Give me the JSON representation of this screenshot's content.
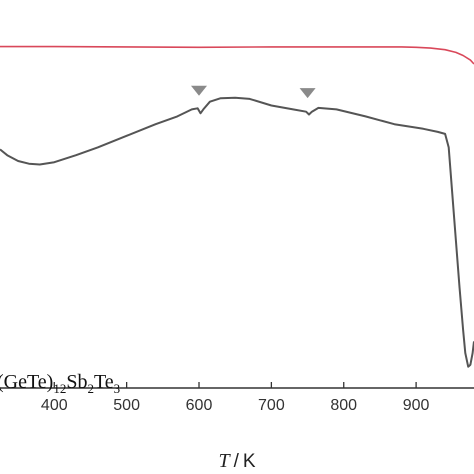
{
  "chart_data": {
    "type": "line",
    "xlabel_symbol": "T",
    "xlabel_unit": "K",
    "x_ticks": [
      400,
      500,
      600,
      700,
      800,
      900
    ],
    "xlim": [
      325,
      980
    ],
    "ylim": [
      0,
      1
    ],
    "grid": false,
    "annotation": {
      "parts": [
        {
          "text": "(GeTe)",
          "sub": false
        },
        {
          "text": "12",
          "sub": true
        },
        {
          "text": "Sb",
          "sub": false
        },
        {
          "text": "2",
          "sub": true
        },
        {
          "text": "Te",
          "sub": false
        },
        {
          "text": "3",
          "sub": true
        }
      ]
    },
    "markers": {
      "shape": "triangle-down",
      "color": "#8a8a8a",
      "x": [
        600,
        750
      ]
    },
    "series": [
      {
        "color": "#d9485a",
        "x": [
          325,
          400,
          500,
          600,
          700,
          800,
          880,
          900,
          920,
          940,
          955,
          965,
          975,
          980
        ],
        "y": [
          0.88,
          0.88,
          0.879,
          0.878,
          0.879,
          0.879,
          0.879,
          0.878,
          0.876,
          0.872,
          0.865,
          0.857,
          0.845,
          0.835
        ]
      },
      {
        "color": "#555555",
        "x": [
          325,
          335,
          350,
          365,
          380,
          400,
          430,
          460,
          500,
          540,
          570,
          590,
          598,
          602,
          606,
          615,
          630,
          650,
          670,
          700,
          730,
          748,
          752,
          756,
          765,
          790,
          830,
          870,
          910,
          930,
          940,
          945,
          950,
          955,
          960,
          965,
          968,
          972,
          975,
          978,
          980
        ],
        "y": [
          0.615,
          0.6,
          0.585,
          0.578,
          0.576,
          0.582,
          0.6,
          0.62,
          0.65,
          0.68,
          0.7,
          0.718,
          0.721,
          0.708,
          0.718,
          0.738,
          0.747,
          0.748,
          0.745,
          0.728,
          0.718,
          0.712,
          0.705,
          0.712,
          0.722,
          0.718,
          0.7,
          0.68,
          0.668,
          0.66,
          0.655,
          0.62,
          0.5,
          0.38,
          0.26,
          0.15,
          0.09,
          0.055,
          0.06,
          0.09,
          0.12
        ]
      }
    ]
  }
}
